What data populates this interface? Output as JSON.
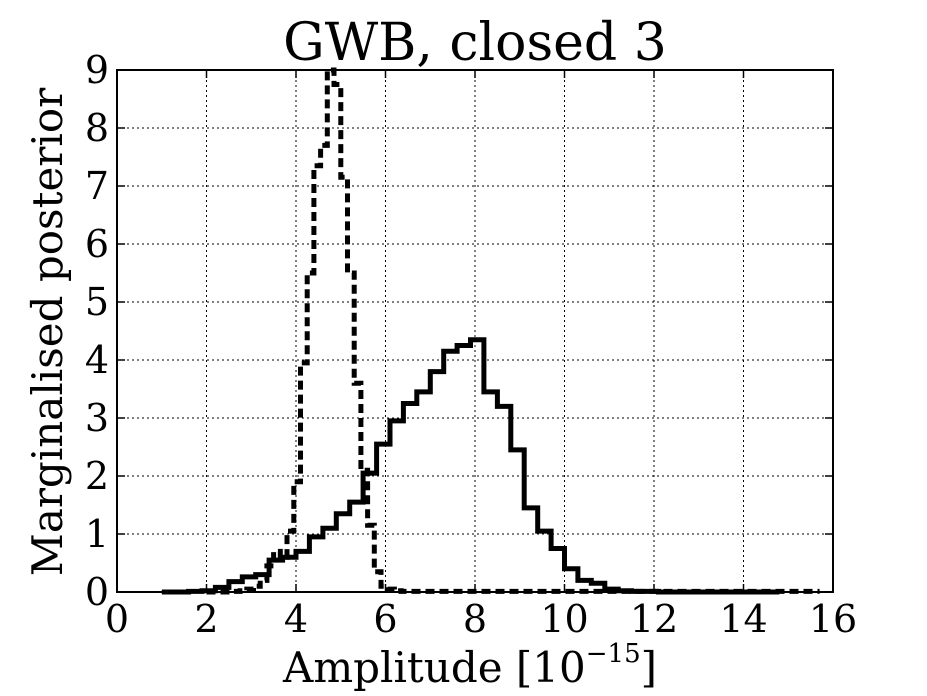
{
  "chart_data": {
    "type": "line",
    "title": "GWB, closed 3",
    "xlabel": "Amplitude [10",
    "xlabel_exponent": "−15",
    "xlabel_close": "]",
    "ylabel": "Marginalised posterior",
    "xlim": [
      0,
      16
    ],
    "ylim": [
      0,
      9
    ],
    "xticks": [
      "0",
      "2",
      "4",
      "6",
      "8",
      "10",
      "12",
      "14",
      "16"
    ],
    "yticks": [
      "0",
      "1",
      "2",
      "3",
      "4",
      "5",
      "6",
      "7",
      "8",
      "9"
    ],
    "grid": true,
    "series": [
      {
        "style": "solid",
        "bin_width": 0.3,
        "bin_starts": [
          1.0,
          1.3,
          1.6,
          1.9,
          2.2,
          2.5,
          2.8,
          3.1,
          3.4,
          3.7,
          4.0,
          4.3,
          4.6,
          4.9,
          5.2,
          5.5,
          5.8,
          6.1,
          6.4,
          6.7,
          7.0,
          7.3,
          7.6,
          7.9,
          8.2,
          8.5,
          8.8,
          9.1,
          9.4,
          9.7,
          10.0,
          10.3,
          10.6,
          10.9,
          11.2,
          11.5,
          11.8,
          12.1,
          12.4,
          12.7,
          13.0,
          13.3,
          13.6,
          13.9,
          14.2,
          14.5
        ],
        "values": [
          0.0,
          0.0,
          0.01,
          0.02,
          0.08,
          0.18,
          0.26,
          0.3,
          0.55,
          0.6,
          0.7,
          0.95,
          1.1,
          1.35,
          1.55,
          2.05,
          2.55,
          2.95,
          3.25,
          3.45,
          3.8,
          4.15,
          4.25,
          4.35,
          3.45,
          3.2,
          2.45,
          1.45,
          1.05,
          0.75,
          0.4,
          0.2,
          0.15,
          0.05,
          0.02,
          0.01,
          0.01,
          0.0,
          0.0,
          0.0,
          0.0,
          0.0,
          0.0,
          0.0,
          0.0,
          0.0
        ]
      },
      {
        "style": "dashed",
        "bin_width": 0.15,
        "bin_starts": [
          2.0,
          2.6,
          2.75,
          2.9,
          3.05,
          3.2,
          3.35,
          3.5,
          3.65,
          3.8,
          3.95,
          4.1,
          4.25,
          4.4,
          4.55,
          4.7,
          4.85,
          5.0,
          5.15,
          5.3,
          5.45,
          5.6,
          5.75,
          5.9,
          6.05,
          6.2,
          6.35
        ],
        "values": [
          0.0,
          0.01,
          0.02,
          0.05,
          0.1,
          0.2,
          0.45,
          0.7,
          0.6,
          1.05,
          1.9,
          3.95,
          5.5,
          7.35,
          7.7,
          9.0,
          8.75,
          7.15,
          5.5,
          3.6,
          2.1,
          1.15,
          0.35,
          0.1,
          0.05,
          0.02,
          0.01
        ],
        "tail_end": 15.7
      }
    ]
  }
}
